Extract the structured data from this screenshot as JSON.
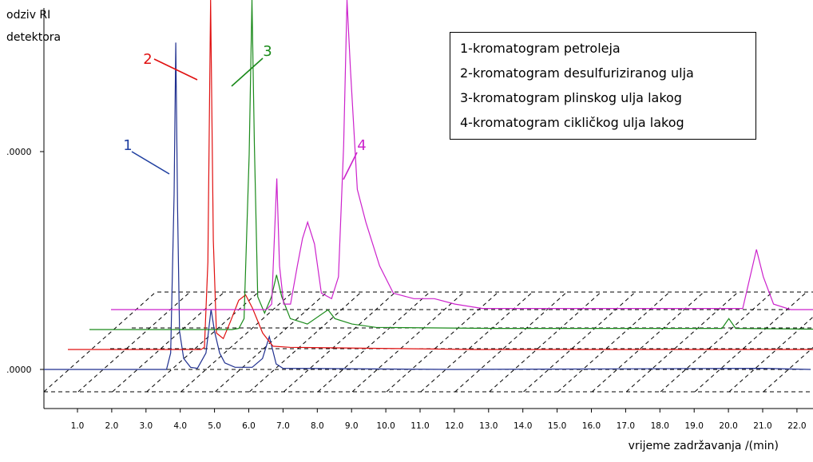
{
  "chart_data": {
    "type": "line",
    "ylabel_line1": "odziv RI",
    "ylabel_line2": "detektora",
    "xlabel": "vrijeme zadržavanja /(min)",
    "y_ticks": [
      ".0000",
      ".0000"
    ],
    "x_ticks": [
      "1.0",
      "2.0",
      "3.0",
      "4.0",
      "5.0",
      "6.0",
      "7.0",
      "8.0",
      "9.0",
      "10.0",
      "11.0",
      "12.0",
      "13.0",
      "14.0",
      "15.0",
      "16.0",
      "17.0",
      "18.0",
      "19.0",
      "20.0",
      "21.0",
      "22.0"
    ],
    "xlim": [
      0.25,
      22.4
    ],
    "legend": [
      "1-kromatogram petroleja",
      "2-kromatogram desulfuriziranog ulja",
      "3-kromatogram plinskog ulja lakog",
      "4-kromatogram cikličkog ulja lakog"
    ],
    "series": [
      {
        "name": "1",
        "color": "#1f2f8f",
        "label_color": "#1f3fa0",
        "points": [
          [
            0,
            0
          ],
          [
            3.6,
            0
          ],
          [
            3.72,
            0.15
          ],
          [
            3.82,
            1.6
          ],
          [
            3.87,
            2.99
          ],
          [
            3.92,
            1.5
          ],
          [
            3.98,
            0.35
          ],
          [
            4.1,
            0.1
          ],
          [
            4.3,
            0.02
          ],
          [
            4.5,
            0.01
          ],
          [
            4.75,
            0.15
          ],
          [
            4.9,
            0.55
          ],
          [
            5.0,
            0.35
          ],
          [
            5.15,
            0.15
          ],
          [
            5.3,
            0.06
          ],
          [
            5.6,
            0.02
          ],
          [
            6.1,
            0.02
          ],
          [
            6.4,
            0.1
          ],
          [
            6.6,
            0.3
          ],
          [
            6.8,
            0.05
          ],
          [
            7.0,
            0.01
          ],
          [
            12.0,
            0
          ],
          [
            21.0,
            0.01
          ],
          [
            22.4,
            0.0
          ]
        ]
      },
      {
        "name": "2",
        "color": "#e01010",
        "label_color": "#e01010",
        "points": [
          [
            0,
            0
          ],
          [
            4.0,
            0
          ],
          [
            4.1,
            0.02
          ],
          [
            4.2,
            0.8
          ],
          [
            4.28,
            3.3
          ],
          [
            4.36,
            1.0
          ],
          [
            4.45,
            0.15
          ],
          [
            4.65,
            0.1
          ],
          [
            4.85,
            0.25
          ],
          [
            5.1,
            0.45
          ],
          [
            5.3,
            0.5
          ],
          [
            5.5,
            0.38
          ],
          [
            5.8,
            0.15
          ],
          [
            6.1,
            0.03
          ],
          [
            6.6,
            0.02
          ],
          [
            12,
            0.0
          ],
          [
            20,
            0.0
          ],
          [
            22.4,
            0.0
          ]
        ]
      },
      {
        "name": "3",
        "color": "#1a8a1a",
        "label_color": "#1a8a1a",
        "points": [
          [
            0,
            0
          ],
          [
            4.3,
            0
          ],
          [
            4.5,
            0.01
          ],
          [
            4.65,
            0.1
          ],
          [
            4.8,
            1.6
          ],
          [
            4.88,
            3.3
          ],
          [
            4.95,
            1.7
          ],
          [
            5.05,
            0.3
          ],
          [
            5.25,
            0.15
          ],
          [
            5.45,
            0.3
          ],
          [
            5.6,
            0.5
          ],
          [
            5.75,
            0.3
          ],
          [
            6.0,
            0.1
          ],
          [
            6.5,
            0.05
          ],
          [
            7.1,
            0.18
          ],
          [
            7.3,
            0.1
          ],
          [
            7.8,
            0.05
          ],
          [
            8.5,
            0.02
          ],
          [
            12,
            0.01
          ],
          [
            18.6,
            0.01
          ],
          [
            18.8,
            0.1
          ],
          [
            19.0,
            0.01
          ],
          [
            22.4,
            0.0
          ]
        ]
      },
      {
        "name": "4",
        "color": "#cc22cc",
        "label_color": "#cc22cc",
        "points": [
          [
            0,
            0
          ],
          [
            4.7,
            0
          ],
          [
            4.85,
            0.05
          ],
          [
            5.0,
            1.2
          ],
          [
            5.08,
            0.4
          ],
          [
            5.2,
            0.05
          ],
          [
            5.4,
            0.05
          ],
          [
            5.6,
            0.4
          ],
          [
            5.75,
            0.65
          ],
          [
            5.9,
            0.8
          ],
          [
            6.1,
            0.6
          ],
          [
            6.3,
            0.15
          ],
          [
            6.6,
            0.1
          ],
          [
            6.8,
            0.3
          ],
          [
            6.95,
            1.5
          ],
          [
            7.05,
            2.9
          ],
          [
            7.15,
            2.2
          ],
          [
            7.35,
            1.1
          ],
          [
            7.6,
            0.8
          ],
          [
            8.0,
            0.4
          ],
          [
            8.4,
            0.15
          ],
          [
            9.0,
            0.1
          ],
          [
            9.6,
            0.1
          ],
          [
            10.2,
            0.05
          ],
          [
            11.0,
            0.01
          ],
          [
            18.6,
            0.01
          ],
          [
            19.0,
            0.55
          ],
          [
            19.2,
            0.3
          ],
          [
            19.5,
            0.05
          ],
          [
            20.0,
            0.0
          ],
          [
            21.5,
            0.0
          ]
        ]
      }
    ]
  }
}
